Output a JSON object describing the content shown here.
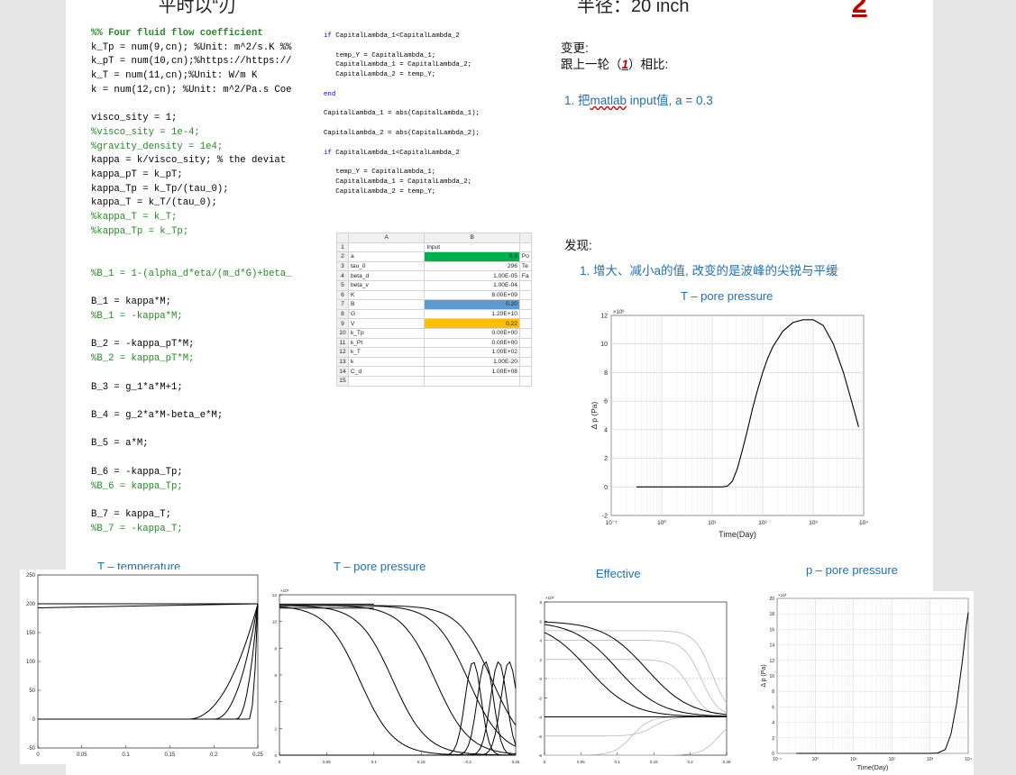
{
  "header": {
    "left_fragment": "平时以“刃",
    "right_fragment": "半径：20 inch",
    "page_number": "2"
  },
  "code_left": [
    {
      "text": "%% Four fluid flow coefficient",
      "style": "gb"
    },
    {
      "text": "k_Tp = num(9,cn); %Unit: m^2/s.K %%",
      "style": "n"
    },
    {
      "text": "k_pT = num(10,cn);%https://https://",
      "style": "n"
    },
    {
      "text": "k_T = num(11,cn);%Unit: W/m K",
      "style": "n"
    },
    {
      "text": "k = num(12,cn); %Unit: m^2/Pa.s Coe",
      "style": "n"
    },
    {
      "text": "",
      "style": "n"
    },
    {
      "text": "visco_sity = 1;",
      "style": "n"
    },
    {
      "text": "%visco_sity = 1e-4;",
      "style": "g"
    },
    {
      "text": "%gravity_density = 1e4;",
      "style": "g"
    },
    {
      "text": "kappa = k/visco_sity; % the deviat",
      "style": "n"
    },
    {
      "text": "kappa_pT = k_pT;",
      "style": "n"
    },
    {
      "text": "kappa_Tp = k_Tp/(tau_0);",
      "style": "n"
    },
    {
      "text": "kappa_T = k_T/(tau_0);",
      "style": "n"
    },
    {
      "text": "%kappa_T = k_T;",
      "style": "g"
    },
    {
      "text": "%kappa_Tp = k_Tp;",
      "style": "g"
    },
    {
      "text": "",
      "style": "n"
    },
    {
      "text": "",
      "style": "n"
    },
    {
      "text": "%B_1 = 1-(alpha_d*eta/(m_d*G)+beta_",
      "style": "g"
    },
    {
      "text": "",
      "style": "n"
    },
    {
      "text": "B_1 = kappa*M;",
      "style": "n"
    },
    {
      "text": "%B_1 = -kappa*M;",
      "style": "g"
    },
    {
      "text": "",
      "style": "n"
    },
    {
      "text": "B_2 = -kappa_pT*M;",
      "style": "n"
    },
    {
      "text": "%B_2 = kappa_pT*M;",
      "style": "g"
    },
    {
      "text": "",
      "style": "n"
    },
    {
      "text": "B_3 = g_1*a*M+1;",
      "style": "n"
    },
    {
      "text": "",
      "style": "n"
    },
    {
      "text": "B_4 = g_2*a*M-beta_e*M;",
      "style": "n"
    },
    {
      "text": "",
      "style": "n"
    },
    {
      "text": "B_5 = a*M;",
      "style": "n"
    },
    {
      "text": "",
      "style": "n"
    },
    {
      "text": "B_6 = -kappa_Tp;",
      "style": "n"
    },
    {
      "text": "%B_6 = kappa_Tp;",
      "style": "g"
    },
    {
      "text": "",
      "style": "n"
    },
    {
      "text": "B_7 = kappa_T;",
      "style": "n"
    },
    {
      "text": "%B_7 = -kappa_T;",
      "style": "g"
    }
  ],
  "code_right": [
    {
      "text": "if CapitalLambda_1<CapitalLambda_2",
      "kw": "if"
    },
    {
      "text": "",
      "kw": ""
    },
    {
      "text": "   temp_Y = CapitalLambda_1;",
      "kw": ""
    },
    {
      "text": "   CapitalLambda_1 = CapitalLambda_2;",
      "kw": ""
    },
    {
      "text": "   CapitalLambda_2 = temp_Y;",
      "kw": ""
    },
    {
      "text": "",
      "kw": ""
    },
    {
      "text": "end",
      "kw": "end"
    },
    {
      "text": "",
      "kw": ""
    },
    {
      "text": "CapitalLambda_1 = abs(CapitalLambda_1);",
      "kw": ""
    },
    {
      "text": "",
      "kw": ""
    },
    {
      "text": "CapitalLambda_2 = abs(CapitalLambda_2);",
      "kw": ""
    },
    {
      "text": "",
      "kw": ""
    },
    {
      "text": "if CapitalLambda_1<CapitalLambda_2",
      "kw": "if"
    },
    {
      "text": "",
      "kw": ""
    },
    {
      "text": "   temp_Y = CapitalLambda_1;",
      "kw": ""
    },
    {
      "text": "   CapitalLambda_1 = CapitalLambda_2;",
      "kw": ""
    },
    {
      "text": "   CapitalLambda_2 = temp_Y;",
      "kw": ""
    }
  ],
  "spreadsheet": {
    "columns": [
      "",
      "A",
      "B",
      ""
    ],
    "rows": [
      {
        "n": "1",
        "a": "",
        "b": "Input",
        "c": "",
        "fill": ""
      },
      {
        "n": "2",
        "a": "a",
        "b": "0.3",
        "c": "Po",
        "fill": "#00b050"
      },
      {
        "n": "3",
        "a": "tau_0",
        "b": "296",
        "c": "Te",
        "fill": ""
      },
      {
        "n": "4",
        "a": "beta_d",
        "b": "1.00E-05",
        "c": "Fa",
        "fill": ""
      },
      {
        "n": "5",
        "a": "beta_v",
        "b": "1.00E-04",
        "c": "",
        "fill": ""
      },
      {
        "n": "6",
        "a": "K",
        "b": "8.00E+09",
        "c": "",
        "fill": ""
      },
      {
        "n": "7",
        "a": "B",
        "b": "0.20",
        "c": "",
        "fill": "#5b9bd5"
      },
      {
        "n": "8",
        "a": "G",
        "b": "1.20E+10",
        "c": "",
        "fill": ""
      },
      {
        "n": "9",
        "a": "V",
        "b": "0.22",
        "c": "",
        "fill": "#ffc000"
      },
      {
        "n": "10",
        "a": "k_Tp",
        "b": "0.00E+00",
        "c": "",
        "fill": ""
      },
      {
        "n": "11",
        "a": "k_Pt",
        "b": "0.00E+00",
        "c": "",
        "fill": ""
      },
      {
        "n": "12",
        "a": "k_T",
        "b": "1.00E+02",
        "c": "",
        "fill": ""
      },
      {
        "n": "13",
        "a": "k",
        "b": "1.00E-20",
        "c": "",
        "fill": ""
      },
      {
        "n": "14",
        "a": "C_d",
        "b": "1.00E+08",
        "c": "",
        "fill": ""
      },
      {
        "n": "15",
        "a": "",
        "b": "",
        "c": "",
        "fill": ""
      }
    ]
  },
  "notes": {
    "change_label": "变更:",
    "compare_prefix": "跟上一轮（",
    "compare_num": "1",
    "compare_suffix": "）相比:",
    "change_item_pre": "1. 把",
    "change_item_word": "matlab",
    "change_item_post": " input值, a = 0.3",
    "finding_label": "发现:",
    "finding_item": "1. 增大、减小a的值, 改变的是波峰的尖锐与平缓"
  },
  "titles": {
    "main_plot": "T – pore pressure",
    "p1": "T – temperature",
    "p2": "T – pore pressure",
    "p3": "Effective",
    "p4": "p – pore pressure"
  },
  "chart_data": [
    {
      "id": "main",
      "type": "line",
      "title": "T – pore pressure",
      "xlabel": "Time(Day)",
      "ylabel": "Δ p (Pa)",
      "xscale": "log",
      "xlim_exp": [
        -1,
        4
      ],
      "x_tick_labels": [
        "10⁻¹",
        "10⁰",
        "10¹",
        "10²",
        "10³",
        "10⁴"
      ],
      "ylim": [
        -2,
        12
      ],
      "y_ticks": [
        -2,
        0,
        2,
        4,
        6,
        8,
        10,
        12
      ],
      "y_multiplier": "×10⁶",
      "series": [
        {
          "x_exp": [
            -0.5,
            0.5,
            1.0,
            1.2,
            1.3,
            1.4,
            1.5,
            1.6,
            1.7,
            1.8,
            1.9,
            2.0,
            2.1,
            2.2,
            2.4,
            2.6,
            2.8,
            3.0,
            3.2,
            3.4,
            3.6,
            3.8,
            3.9
          ],
          "y": [
            0.0,
            0.0,
            0.0,
            0.0,
            0.05,
            0.4,
            1.3,
            2.6,
            4.0,
            5.5,
            6.8,
            8.0,
            9.0,
            9.8,
            10.9,
            11.5,
            11.7,
            11.7,
            11.3,
            10.0,
            8.0,
            5.5,
            4.2
          ]
        }
      ]
    },
    {
      "id": "p1",
      "type": "line",
      "title": "T – temperature",
      "xlim": [
        0,
        0.25
      ],
      "x_ticks": [
        0,
        0.05,
        0.1,
        0.15,
        0.2,
        0.25
      ],
      "ylim": [
        -50,
        250
      ],
      "y_ticks": [
        -50,
        0,
        50,
        100,
        150,
        200,
        250
      ],
      "flat_lines": [
        200,
        193
      ],
      "curve_x0": [
        0.17,
        0.2,
        0.225,
        0.24
      ]
    },
    {
      "id": "p2",
      "type": "line",
      "title": "T – pore pressure",
      "xlim": [
        0,
        0.25
      ],
      "x_ticks": [
        0,
        0.05,
        0.1,
        0.15,
        0.2,
        0.25
      ],
      "ylim": [
        0,
        12
      ],
      "y_multiplier": "×10⁶",
      "y_ticks": [
        0,
        2,
        4,
        6,
        8,
        10,
        12
      ],
      "start_values": [
        11.0,
        11.3
      ],
      "drop_centers": [
        0.085,
        0.12,
        0.165,
        0.2,
        0.225
      ],
      "bump_centers": [
        0.205,
        0.218,
        0.232,
        0.243
      ]
    },
    {
      "id": "p3",
      "type": "line",
      "title": "Effective",
      "xlim": [
        0,
        0.25
      ],
      "x_ticks": [
        0,
        0.05,
        0.1,
        0.15,
        0.2,
        0.25
      ],
      "ylim": [
        -8,
        8
      ],
      "y_multiplier": "×10⁶",
      "y_ticks": [
        -8,
        -6,
        -4,
        -2,
        0,
        2,
        4,
        6,
        8
      ],
      "end_value": -4.0,
      "gray_start": [
        -8,
        -6,
        -4,
        2,
        4,
        5
      ],
      "gray_centers": [
        0.12,
        0.15,
        0.18,
        0.2,
        0.215,
        0.23,
        0.24
      ],
      "black_centers": [
        0.06,
        0.1,
        0.14
      ]
    },
    {
      "id": "p4",
      "type": "line",
      "title": "p – pore pressure",
      "xlabel": "Time(Day)",
      "ylabel": "Δ p (Pa)",
      "xscale": "log",
      "xlim_exp": [
        -1,
        4
      ],
      "x_tick_labels": [
        "10⁻¹",
        "10⁰",
        "10¹",
        "10²",
        "10³",
        "10⁴"
      ],
      "ylim": [
        0,
        20
      ],
      "y_multiplier": "×10⁶",
      "y_ticks": [
        0,
        2,
        4,
        6,
        8,
        10,
        12,
        14,
        16,
        18,
        20
      ],
      "series": [
        {
          "x_exp": [
            -0.5,
            2.5,
            3.0,
            3.2,
            3.4,
            3.55,
            3.7,
            3.85,
            3.95,
            4.0
          ],
          "y": [
            0,
            0,
            0,
            0.05,
            0.5,
            2.5,
            6.5,
            12.0,
            16.5,
            18.2
          ]
        }
      ]
    }
  ]
}
